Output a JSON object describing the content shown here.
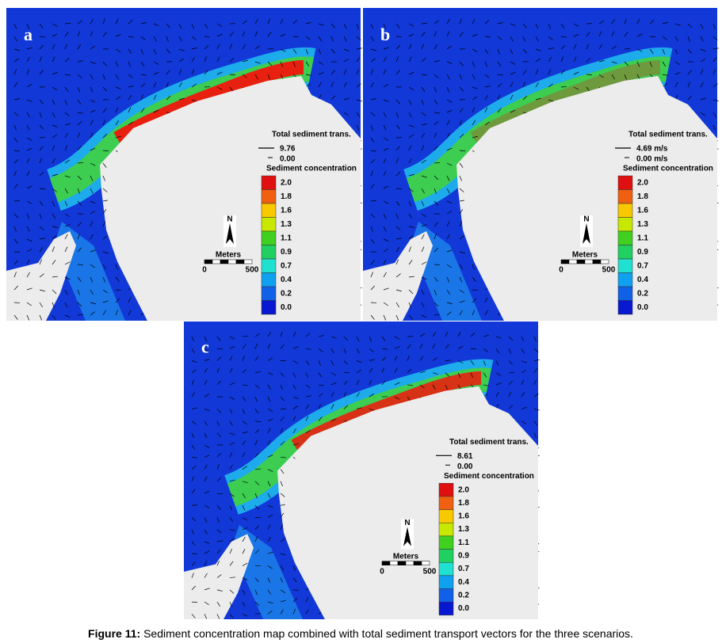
{
  "caption": {
    "label": "Figure 11:",
    "text": " Sediment concentration map combined with total sediment transport vectors for the three scenarios."
  },
  "panels": [
    {
      "label": "a",
      "legend": {
        "vector_title": "Total sediment trans.",
        "vector_max": "9.76",
        "vector_min": "0.00",
        "color_title": "Sediment concentration",
        "levels": [
          "2.0",
          "1.8",
          "1.6",
          "1.3",
          "1.1",
          "0.9",
          "0.7",
          "0.4",
          "0.2",
          "0.0"
        ]
      },
      "north": "N",
      "scale": {
        "title": "Meters",
        "start": "0",
        "end": "500"
      }
    },
    {
      "label": "b",
      "legend": {
        "vector_title": "Total sediment trans.",
        "vector_max": "4.69 m/s",
        "vector_min": "0.00 m/s",
        "color_title": "Sediment concentration",
        "levels": [
          "2.0",
          "1.8",
          "1.6",
          "1.3",
          "1.1",
          "0.9",
          "0.7",
          "0.4",
          "0.2",
          "0.0"
        ]
      },
      "north": "N",
      "scale": {
        "title": "Meters",
        "start": "0",
        "end": "500"
      }
    },
    {
      "label": "c",
      "legend": {
        "vector_title": "Total sediment trans.",
        "vector_max": "8.61",
        "vector_min": "0.00",
        "color_title": "Sediment concentration",
        "levels": [
          "2.0",
          "1.8",
          "1.6",
          "1.3",
          "1.1",
          "0.9",
          "0.7",
          "0.4",
          "0.2",
          "0.0"
        ]
      },
      "north": "N",
      "scale": {
        "title": "Meters",
        "start": "0",
        "end": "500"
      }
    }
  ]
}
